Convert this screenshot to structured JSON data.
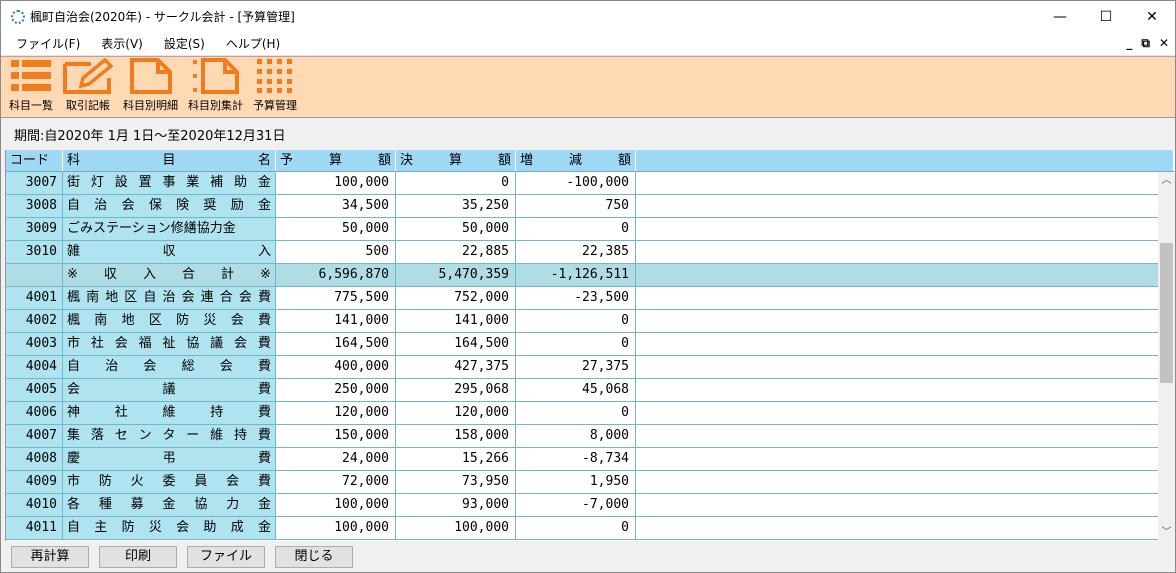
{
  "window": {
    "title": "楓町自治会(2020年) - サークル会計 - [予算管理]",
    "minimize": "—",
    "maximize": "☐",
    "close": "✕"
  },
  "menu": [
    {
      "label": "ファイル(F)"
    },
    {
      "label": "表示(V)"
    },
    {
      "label": "設定(S)"
    },
    {
      "label": "ヘルプ(H)"
    }
  ],
  "mdi": {
    "minimize": "_",
    "restore": "⧉",
    "close": "✕"
  },
  "toolbar": [
    {
      "label": "科目一覧",
      "icon": "list-icon"
    },
    {
      "label": "取引記帳",
      "icon": "edit-icon"
    },
    {
      "label": "科目別明細",
      "icon": "document-icon"
    },
    {
      "label": "科目別集計",
      "icon": "summary-document-icon"
    },
    {
      "label": "予算管理",
      "icon": "grid-icon"
    }
  ],
  "accent_color": "#f07c1e",
  "period": "期間:自2020年 1月 1日～至2020年12月31日",
  "table": {
    "headers": {
      "code": "コード",
      "name": [
        "科",
        "目",
        "名"
      ],
      "budget": [
        "予",
        "算",
        "額"
      ],
      "actual": [
        "決",
        "算",
        "額"
      ],
      "diff": [
        "増",
        "減",
        "額"
      ]
    },
    "rows": [
      {
        "code": "3007",
        "name": [
          "街",
          "灯",
          "設",
          "置",
          "事",
          "業",
          "補",
          "助",
          "金"
        ],
        "budget": "100,000",
        "actual": "0",
        "diff": "-100,000"
      },
      {
        "code": "3008",
        "name": [
          "自",
          "治",
          "会",
          "保",
          "険",
          "奨",
          "励",
          "金"
        ],
        "budget": "34,500",
        "actual": "35,250",
        "diff": "750"
      },
      {
        "code": "3009",
        "name": [
          "ごみステーション修繕協力金"
        ],
        "budget": "50,000",
        "actual": "50,000",
        "diff": "0"
      },
      {
        "code": "3010",
        "name": [
          "雑",
          "収",
          "入"
        ],
        "budget": "500",
        "actual": "22,885",
        "diff": "22,385"
      },
      {
        "code": "",
        "name": [
          "※",
          "収",
          "入",
          "合",
          "計",
          "※"
        ],
        "budget": "6,596,870",
        "actual": "5,470,359",
        "diff": "-1,126,511",
        "total": true
      },
      {
        "code": "4001",
        "name": [
          "楓",
          "南",
          "地",
          "区",
          "自",
          "治",
          "会",
          "連",
          "合",
          "会",
          "費"
        ],
        "budget": "775,500",
        "actual": "752,000",
        "diff": "-23,500"
      },
      {
        "code": "4002",
        "name": [
          "楓",
          "南",
          "地",
          "区",
          "防",
          "災",
          "会",
          "費"
        ],
        "budget": "141,000",
        "actual": "141,000",
        "diff": "0"
      },
      {
        "code": "4003",
        "name": [
          "市",
          "社",
          "会",
          "福",
          "祉",
          "協",
          "議",
          "会",
          "費"
        ],
        "budget": "164,500",
        "actual": "164,500",
        "diff": "0"
      },
      {
        "code": "4004",
        "name": [
          "自",
          "治",
          "会",
          "総",
          "会",
          "費"
        ],
        "budget": "400,000",
        "actual": "427,375",
        "diff": "27,375"
      },
      {
        "code": "4005",
        "name": [
          "会",
          "議",
          "費"
        ],
        "budget": "250,000",
        "actual": "295,068",
        "diff": "45,068"
      },
      {
        "code": "4006",
        "name": [
          "神",
          "社",
          "維",
          "持",
          "費"
        ],
        "budget": "120,000",
        "actual": "120,000",
        "diff": "0"
      },
      {
        "code": "4007",
        "name": [
          "集",
          "落",
          "セ",
          "ン",
          "タ",
          "ー",
          "維",
          "持",
          "費"
        ],
        "budget": "150,000",
        "actual": "158,000",
        "diff": "8,000"
      },
      {
        "code": "4008",
        "name": [
          "慶",
          "弔",
          "費"
        ],
        "budget": "24,000",
        "actual": "15,266",
        "diff": "-8,734"
      },
      {
        "code": "4009",
        "name": [
          "市",
          "防",
          "火",
          "委",
          "員",
          "会",
          "費"
        ],
        "budget": "72,000",
        "actual": "73,950",
        "diff": "1,950"
      },
      {
        "code": "4010",
        "name": [
          "各",
          "種",
          "募",
          "金",
          "協",
          "力",
          "金"
        ],
        "budget": "100,000",
        "actual": "93,000",
        "diff": "-7,000"
      },
      {
        "code": "4011",
        "name": [
          "自",
          "主",
          "防",
          "災",
          "会",
          "助",
          "成",
          "金"
        ],
        "budget": "100,000",
        "actual": "100,000",
        "diff": "0"
      }
    ]
  },
  "buttons": [
    {
      "label": "再計算",
      "name": "recalculate-button"
    },
    {
      "label": "印刷",
      "name": "print-button"
    },
    {
      "label": "ファイル",
      "name": "file-button"
    },
    {
      "label": "閉じる",
      "name": "close-button"
    }
  ]
}
